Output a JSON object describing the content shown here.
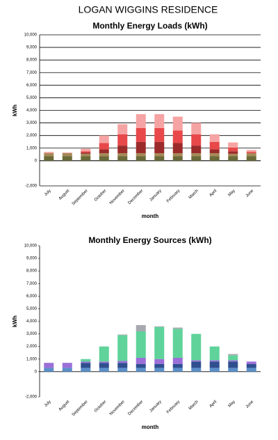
{
  "title": "LOGAN WIGGINS RESIDENCE",
  "chart_data": [
    {
      "type": "bar",
      "stacked": true,
      "title": "Monthly Energy Loads (kWh)",
      "x_label": "month",
      "y_label": "kWh",
      "categories": [
        "July",
        "August",
        "September",
        "October",
        "November",
        "December",
        "January",
        "February",
        "March",
        "April",
        "May",
        "June"
      ],
      "series": [
        {
          "color": "#6b6b3a",
          "values": [
            350,
            350,
            350,
            350,
            350,
            350,
            350,
            350,
            350,
            350,
            350,
            350
          ]
        },
        {
          "color": "#a58a5a",
          "values": [
            250,
            250,
            200,
            250,
            250,
            250,
            250,
            250,
            250,
            250,
            200,
            250
          ]
        },
        {
          "color": "#9b2b2b",
          "values": [
            0,
            0,
            100,
            300,
            600,
            900,
            900,
            800,
            600,
            300,
            200,
            0
          ]
        },
        {
          "color": "#e8484a",
          "values": [
            0,
            0,
            100,
            500,
            900,
            1100,
            1100,
            1000,
            900,
            600,
            300,
            100
          ]
        },
        {
          "color": "#f6a3a3",
          "values": [
            100,
            50,
            200,
            600,
            800,
            1100,
            1100,
            1100,
            900,
            600,
            400,
            150
          ]
        }
      ],
      "ylim": [
        -2000,
        10000
      ],
      "yticks": [
        {
          "value": -2000,
          "label": "-2,000"
        },
        0,
        {
          "value": 1000,
          "label": "1,000"
        },
        {
          "value": 2000,
          "label": "2,000"
        },
        {
          "value": 3000,
          "label": "3,000"
        },
        {
          "value": 4000,
          "label": "4,000"
        },
        {
          "value": 5000,
          "label": "5,000"
        },
        {
          "value": 6000,
          "label": "6,000"
        },
        {
          "value": 7000,
          "label": "7,000"
        },
        {
          "value": 8000,
          "label": "8,000"
        },
        {
          "value": 9000,
          "label": "9,000"
        },
        {
          "value": 10000,
          "label": "10,000"
        }
      ],
      "grid": true
    },
    {
      "type": "bar",
      "stacked": true,
      "title": "Monthly Energy Sources (kWh)",
      "x_label": "month",
      "y_label": "kWh",
      "categories": [
        "July",
        "August",
        "September",
        "October",
        "November",
        "December",
        "January",
        "February",
        "March",
        "April",
        "May",
        "June"
      ],
      "series": [
        {
          "color": "#5b8fc9",
          "values": [
            300,
            300,
            300,
            300,
            300,
            300,
            300,
            300,
            300,
            300,
            300,
            300
          ]
        },
        {
          "color": "#2f4f8f",
          "values": [
            0,
            0,
            400,
            400,
            400,
            300,
            300,
            300,
            500,
            500,
            500,
            300
          ]
        },
        {
          "color": "#9b6fd8",
          "values": [
            400,
            400,
            100,
            100,
            150,
            500,
            400,
            500,
            100,
            100,
            100,
            200
          ]
        },
        {
          "color": "#5fd39a",
          "values": [
            0,
            0,
            200,
            1200,
            2050,
            2100,
            2550,
            2300,
            2100,
            1100,
            400,
            0
          ]
        },
        {
          "color": "#a8a8b0",
          "values": [
            0,
            0,
            0,
            0,
            50,
            500,
            50,
            100,
            0,
            0,
            100,
            0
          ]
        }
      ],
      "ylim": [
        -2000,
        10000
      ],
      "yticks": [
        {
          "value": -2000,
          "label": "-2,000"
        },
        0,
        {
          "value": 1000,
          "label": "1,000"
        },
        {
          "value": 2000,
          "label": "2,000"
        },
        {
          "value": 3000,
          "label": "3,000"
        },
        {
          "value": 4000,
          "label": "4,000"
        },
        {
          "value": 5000,
          "label": "5,000"
        },
        {
          "value": 6000,
          "label": "6,000"
        },
        {
          "value": 7000,
          "label": "7,000"
        },
        {
          "value": 8000,
          "label": "8,000"
        },
        {
          "value": 9000,
          "label": "9,000"
        },
        {
          "value": 10000,
          "label": "10,000"
        }
      ],
      "grid": false
    }
  ]
}
